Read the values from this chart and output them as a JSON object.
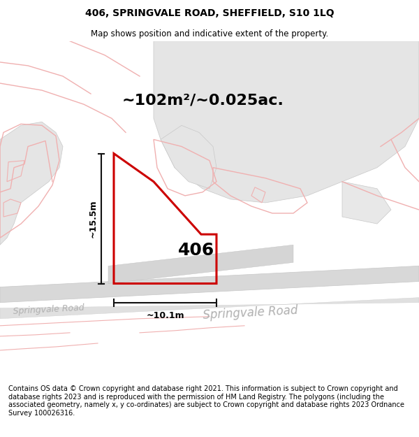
{
  "title": "406, SPRINGVALE ROAD, SHEFFIELD, S10 1LQ",
  "subtitle": "Map shows position and indicative extent of the property.",
  "footer": "Contains OS data © Crown copyright and database right 2021. This information is subject to Crown copyright and database rights 2023 and is reproduced with the permission of HM Land Registry. The polygons (including the associated geometry, namely x, y co-ordinates) are subject to Crown copyright and database rights 2023 Ordnance Survey 100026316.",
  "area_label": "~102m²/~0.025ac.",
  "width_label": "~10.1m",
  "height_label": "~15.5m",
  "plot_number": "406",
  "bg_color": "#ffffff",
  "road_fill": "#e0e0e0",
  "grey_fill": "#e8e8e8",
  "grey_fill2": "#dedede",
  "grey_edge": "#c8c8c8",
  "pink": "#f0b0b0",
  "red": "#cc0000",
  "dim_color": "#111111",
  "road_label_color": "#b0b0b0",
  "title_fs": 10,
  "subtitle_fs": 8.5,
  "footer_fs": 7.0,
  "area_fs": 16,
  "plot_num_fs": 18,
  "dim_fs": 9,
  "road_fs_small": 9,
  "road_fs_large": 12
}
